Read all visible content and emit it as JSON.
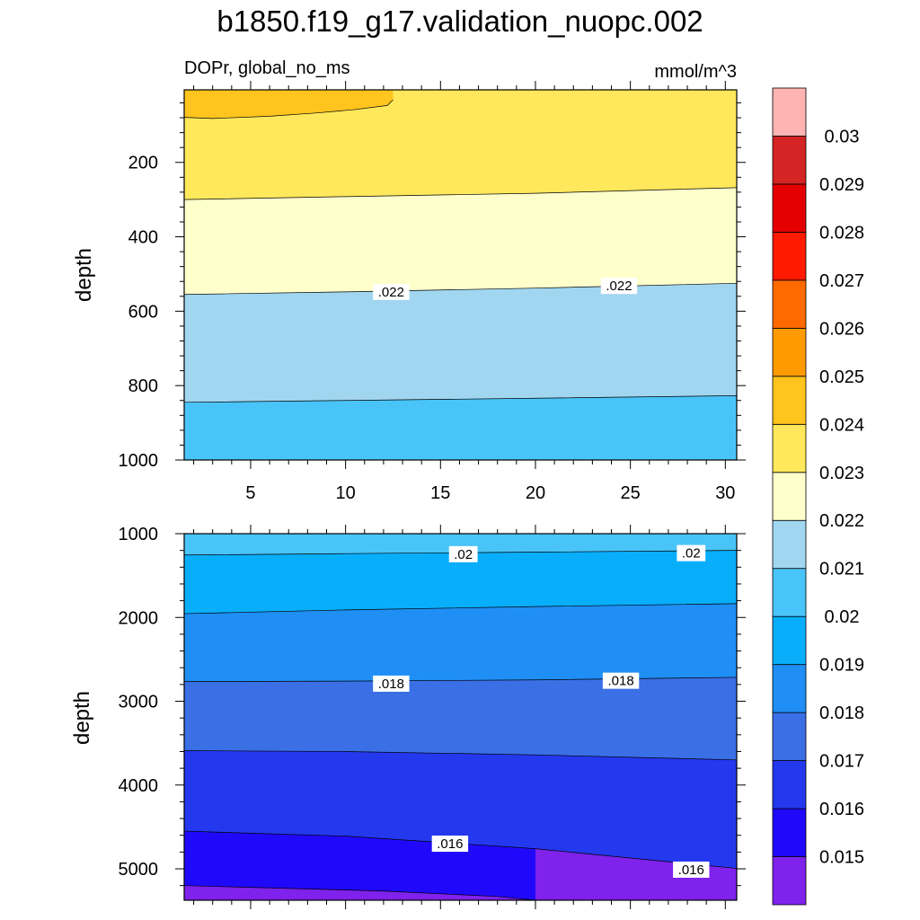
{
  "title": "b1850.f19_g17.validation_nuopc.002",
  "chart_data": [
    {
      "type": "contour",
      "panel": "upper",
      "left_label": "DOPr, global_no_ms",
      "right_label": "mmol/m^3",
      "ylabel": "depth",
      "xlim": [
        1.5,
        30.6
      ],
      "ylim": [
        1000,
        5
      ],
      "xticks": [
        5,
        10,
        15,
        20,
        25,
        30
      ],
      "xtick_labels": [
        "5",
        "10",
        "15",
        "20",
        "25",
        "30"
      ],
      "yticks": [
        200,
        400,
        600,
        800,
        1000
      ],
      "ytick_labels": [
        "200",
        "400",
        "600",
        "800",
        "1000"
      ],
      "contour_lines": [
        {
          "level": 0.024,
          "points": [
            [
              1.5,
              79
            ],
            [
              3,
              82
            ],
            [
              6,
              76
            ],
            [
              8.5,
              67
            ],
            [
              10.5,
              58
            ],
            [
              12.2,
              47
            ],
            [
              12.5,
              32
            ]
          ]
        },
        {
          "level": 0.023,
          "points": [
            [
              1.5,
              300
            ],
            [
              10,
              292
            ],
            [
              20,
              283
            ],
            [
              30.6,
              268
            ]
          ]
        },
        {
          "level": 0.022,
          "points": [
            [
              1.5,
              555
            ],
            [
              10,
              548
            ],
            [
              20,
              538
            ],
            [
              30.6,
              525
            ]
          ]
        },
        {
          "level": 0.021,
          "points": [
            [
              1.5,
              845
            ],
            [
              10,
              840
            ],
            [
              20,
              834
            ],
            [
              30.6,
              827
            ]
          ]
        }
      ],
      "contour_labels": [
        {
          "text": ".022",
          "x": 12.4,
          "y": 548
        },
        {
          "text": ".022",
          "x": 24.4,
          "y": 532
        }
      ]
    },
    {
      "type": "contour",
      "panel": "lower",
      "ylabel": "depth",
      "xlim": [
        1.5,
        30.6
      ],
      "ylim": [
        5375,
        1000
      ],
      "xticks": [
        5,
        10,
        15,
        20,
        25,
        30
      ],
      "yticks": [
        1000,
        2000,
        3000,
        4000,
        5000
      ],
      "ytick_labels": [
        "1000",
        "2000",
        "3000",
        "4000",
        "5000"
      ],
      "contour_lines": [
        {
          "level": 0.02,
          "points": [
            [
              1.5,
              1255
            ],
            [
              10,
              1238
            ],
            [
              20,
              1220
            ],
            [
              30.6,
              1200
            ]
          ]
        },
        {
          "level": 0.019,
          "points": [
            [
              1.5,
              1955
            ],
            [
              10,
              1910
            ],
            [
              20,
              1870
            ],
            [
              30.6,
              1835
            ]
          ]
        },
        {
          "level": 0.018,
          "points": [
            [
              1.5,
              2765
            ],
            [
              10,
              2760
            ],
            [
              20,
              2745
            ],
            [
              30.6,
              2715
            ]
          ]
        },
        {
          "level": 0.017,
          "points": [
            [
              1.5,
              3590
            ],
            [
              10,
              3600
            ],
            [
              20,
              3640
            ],
            [
              30.6,
              3700
            ]
          ]
        },
        {
          "level": 0.016,
          "points": [
            [
              1.5,
              4550
            ],
            [
              10,
              4610
            ],
            [
              20,
              4760
            ],
            [
              30.6,
              4995
            ]
          ]
        },
        {
          "level": 0.015,
          "points": [
            [
              1.5,
              5200
            ],
            [
              12,
              5265
            ],
            [
              18,
              5330
            ],
            [
              20,
              5375
            ]
          ]
        }
      ],
      "contour_labels": [
        {
          "text": ".02",
          "x": 16.2,
          "y": 1245
        },
        {
          "text": ".02",
          "x": 28.2,
          "y": 1232
        },
        {
          "text": ".018",
          "x": 12.4,
          "y": 2790
        },
        {
          "text": ".018",
          "x": 24.5,
          "y": 2755
        },
        {
          "text": ".016",
          "x": 15.5,
          "y": 4700
        },
        {
          "text": ".016",
          "x": 28.2,
          "y": 5010
        }
      ]
    }
  ],
  "colorbar": {
    "levels": [
      0.015,
      0.016,
      0.017,
      0.018,
      0.019,
      0.02,
      0.021,
      0.022,
      0.023,
      0.024,
      0.025,
      0.026,
      0.027,
      0.028,
      0.029,
      0.03
    ],
    "level_labels": [
      "0.015",
      "0.016",
      "0.017",
      "0.018",
      "0.019",
      "0.02",
      "0.021",
      "0.022",
      "0.023",
      "0.024",
      "0.025",
      "0.026",
      "0.027",
      "0.028",
      "0.029",
      "0.03"
    ],
    "colors": [
      "#7e22ec",
      "#2009fb",
      "#2438ee",
      "#3a6fe6",
      "#1f8ff5",
      "#09aefb",
      "#49c4f8",
      "#a1d6f1",
      "#ffffcc",
      "#ffe85c",
      "#ffc41e",
      "#ff9a00",
      "#ff6a00",
      "#ff1a00",
      "#e40000",
      "#d42424",
      "#ffb4b4"
    ]
  }
}
